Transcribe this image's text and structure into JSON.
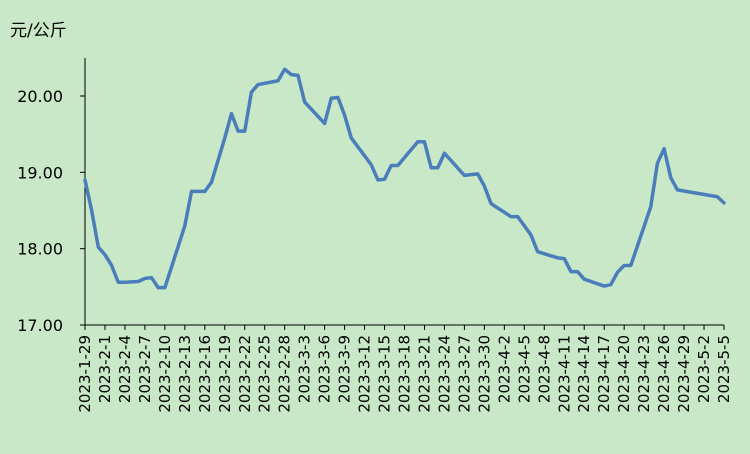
{
  "chart_data": {
    "type": "line",
    "title": "",
    "xlabel": "",
    "ylabel": "元/公斤",
    "ylim": [
      17.0,
      20.5
    ],
    "yticks": [
      "17.00",
      "18.00",
      "19.00",
      "20.00"
    ],
    "grid": false,
    "legend": "none",
    "colors": {
      "background": "#c8e8c8",
      "line": "#4a7ebb",
      "axis": "#000000"
    },
    "x_tick_labels": [
      "2023-1-29",
      "2023-2-1",
      "2023-2-4",
      "2023-2-7",
      "2023-2-10",
      "2023-2-13",
      "2023-2-16",
      "2023-2-19",
      "2023-2-22",
      "2023-2-25",
      "2023-2-28",
      "2023-3-3",
      "2023-3-6",
      "2023-3-9",
      "2023-3-12",
      "2023-3-15",
      "2023-3-18",
      "2023-3-21",
      "2023-3-24",
      "2023-3-27",
      "2023-3-30",
      "2023-4-2",
      "2023-4-5",
      "2023-4-8",
      "2023-4-11",
      "2023-4-14",
      "2023-4-17",
      "2023-4-20",
      "2023-4-23",
      "2023-4-26",
      "2023-4-29",
      "2023-5-2",
      "2023-5-5"
    ],
    "series": [
      {
        "name": "",
        "points": [
          [
            "2023-1-29",
            18.9
          ],
          [
            "2023-1-30",
            18.5
          ],
          [
            "2023-1-31",
            18.02
          ],
          [
            "2023-2-1",
            17.92
          ],
          [
            "2023-2-2",
            17.78
          ],
          [
            "2023-2-3",
            17.56
          ],
          [
            "2023-2-4",
            17.56
          ],
          [
            "2023-2-6",
            17.57
          ],
          [
            "2023-2-7",
            17.61
          ],
          [
            "2023-2-8",
            17.62
          ],
          [
            "2023-2-9",
            17.49
          ],
          [
            "2023-2-10",
            17.49
          ],
          [
            "2023-2-13",
            18.3
          ],
          [
            "2023-2-14",
            18.75
          ],
          [
            "2023-2-16",
            18.75
          ],
          [
            "2023-2-17",
            18.87
          ],
          [
            "2023-2-19",
            19.45
          ],
          [
            "2023-2-20",
            19.77
          ],
          [
            "2023-2-21",
            19.54
          ],
          [
            "2023-2-22",
            19.54
          ],
          [
            "2023-2-23",
            20.05
          ],
          [
            "2023-2-24",
            20.15
          ],
          [
            "2023-2-27",
            20.2
          ],
          [
            "2023-2-28",
            20.35
          ],
          [
            "2023-3-1",
            20.28
          ],
          [
            "2023-3-2",
            20.27
          ],
          [
            "2023-3-3",
            19.92
          ],
          [
            "2023-3-6",
            19.64
          ],
          [
            "2023-3-7",
            19.97
          ],
          [
            "2023-3-8",
            19.98
          ],
          [
            "2023-3-9",
            19.75
          ],
          [
            "2023-3-10",
            19.45
          ],
          [
            "2023-3-13",
            19.1
          ],
          [
            "2023-3-14",
            18.9
          ],
          [
            "2023-3-15",
            18.91
          ],
          [
            "2023-3-16",
            19.09
          ],
          [
            "2023-3-17",
            19.09
          ],
          [
            "2023-3-20",
            19.4
          ],
          [
            "2023-3-21",
            19.4
          ],
          [
            "2023-3-22",
            19.06
          ],
          [
            "2023-3-23",
            19.06
          ],
          [
            "2023-3-24",
            19.25
          ],
          [
            "2023-3-27",
            18.96
          ],
          [
            "2023-3-29",
            18.98
          ],
          [
            "2023-3-30",
            18.82
          ],
          [
            "2023-3-31",
            18.59
          ],
          [
            "2023-4-3",
            18.42
          ],
          [
            "2023-4-4",
            18.42
          ],
          [
            "2023-4-6",
            18.18
          ],
          [
            "2023-4-7",
            17.96
          ],
          [
            "2023-4-10",
            17.88
          ],
          [
            "2023-4-11",
            17.87
          ],
          [
            "2023-4-12",
            17.7
          ],
          [
            "2023-4-13",
            17.7
          ],
          [
            "2023-4-14",
            17.6
          ],
          [
            "2023-4-17",
            17.51
          ],
          [
            "2023-4-18",
            17.53
          ],
          [
            "2023-4-19",
            17.69
          ],
          [
            "2023-4-20",
            17.78
          ],
          [
            "2023-4-21",
            17.78
          ],
          [
            "2023-4-24",
            18.55
          ],
          [
            "2023-4-25",
            19.12
          ],
          [
            "2023-4-26",
            19.31
          ],
          [
            "2023-4-27",
            18.93
          ],
          [
            "2023-4-28",
            18.77
          ],
          [
            "2023-5-4",
            18.68
          ],
          [
            "2023-5-5",
            18.6
          ]
        ]
      }
    ]
  }
}
